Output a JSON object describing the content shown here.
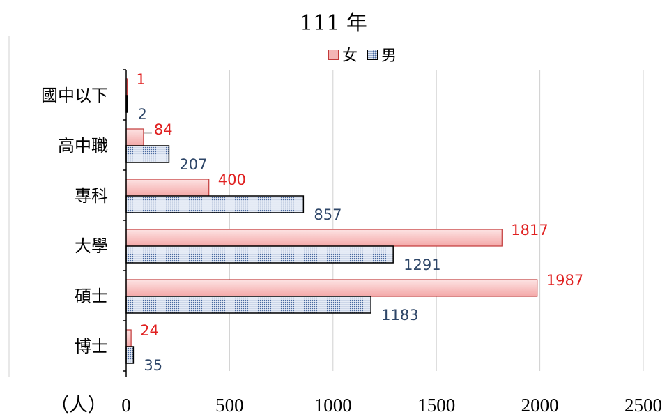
{
  "chart_data": {
    "type": "bar",
    "orientation": "horizontal",
    "title": "111 年",
    "unit_label": "（人）",
    "categories": [
      "國中以下",
      "高中職",
      "專科",
      "大學",
      "碩士",
      "博士"
    ],
    "series": [
      {
        "name": "女",
        "values": [
          1,
          84,
          400,
          1817,
          1987,
          24
        ],
        "color": "#f4b4b4",
        "label_color": "#e02020"
      },
      {
        "name": "男",
        "values": [
          2,
          207,
          857,
          1291,
          1183,
          35
        ],
        "color": "#dde5f2",
        "label_color": "#2e4668"
      }
    ],
    "xlim": [
      0,
      2500
    ],
    "xticks": [
      "0",
      "500",
      "1000",
      "1500",
      "2000",
      "2500"
    ],
    "grid": true,
    "legend_position": "top"
  }
}
